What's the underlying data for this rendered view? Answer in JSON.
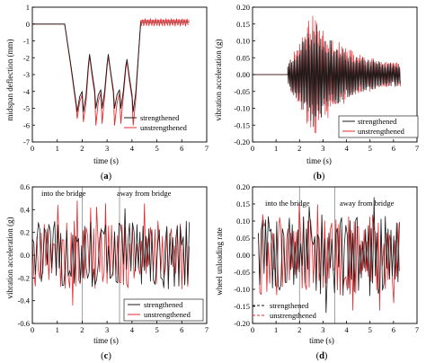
{
  "colors": {
    "strengthened": "#1a1a1a",
    "unstrengthened": "#e8292e",
    "vline": "#8a8a8a"
  },
  "panel_labels": [
    "(",
    "a",
    ")",
    "(",
    "b",
    ")",
    "(",
    "c",
    ")",
    "(",
    "d",
    ")"
  ],
  "chart_data": [
    {
      "id": "a",
      "type": "line",
      "xlabel": "time (s)",
      "ylabel": "midspan deflection (mm)",
      "xlim": [
        0,
        7
      ],
      "ylim": [
        -7,
        1
      ],
      "xticks": [
        0,
        1,
        2,
        3,
        4,
        5,
        6,
        7
      ],
      "yticks": [
        1,
        0,
        -1,
        -2,
        -3,
        -4,
        -5,
        -6,
        -7
      ],
      "legend": [
        "strengthened",
        "unstrengthened"
      ],
      "legend_position": "lower-right",
      "annotations": [],
      "series": [
        {
          "name": "strengthened",
          "x": [
            0,
            1.3,
            1.55,
            1.75,
            1.8,
            1.9,
            2.0,
            2.05,
            2.15,
            2.25,
            2.3,
            2.4,
            2.5,
            2.55,
            2.65,
            2.75,
            2.8,
            2.9,
            3.0,
            3.05,
            3.15,
            3.25,
            3.3,
            3.4,
            3.5,
            3.55,
            3.65,
            3.75,
            3.8,
            3.9,
            4.0,
            4.05,
            4.15,
            4.25,
            4.35,
            6.3
          ],
          "y": [
            0,
            0,
            -2.5,
            -4.6,
            -5.2,
            -4.3,
            -4.0,
            -5.2,
            -4.3,
            -2.4,
            -1.8,
            -2.9,
            -3.9,
            -5.0,
            -4.2,
            -3.9,
            -5.0,
            -4.0,
            -2.4,
            -1.8,
            -2.9,
            -3.9,
            -5.0,
            -4.2,
            -3.9,
            -5.0,
            -4.0,
            -2.5,
            -2.1,
            -3.2,
            -4.2,
            -5.2,
            -4.1,
            -2.0,
            0.1,
            0.1
          ]
        },
        {
          "name": "unstrengthened",
          "x": [
            0,
            1.3,
            1.55,
            1.75,
            1.8,
            1.9,
            2.0,
            2.05,
            2.15,
            2.25,
            2.3,
            2.4,
            2.5,
            2.55,
            2.65,
            2.75,
            2.8,
            2.9,
            3.0,
            3.05,
            3.15,
            3.25,
            3.3,
            3.4,
            3.5,
            3.55,
            3.65,
            3.75,
            3.8,
            3.9,
            4.0,
            4.05,
            4.15,
            4.25,
            4.35,
            6.3
          ],
          "y": [
            0,
            0,
            -2.6,
            -4.8,
            -5.6,
            -4.6,
            -4.2,
            -5.8,
            -4.7,
            -2.6,
            -1.9,
            -3.1,
            -4.1,
            -6.0,
            -4.6,
            -4.1,
            -5.9,
            -4.3,
            -2.6,
            -1.9,
            -3.0,
            -4.1,
            -6.0,
            -4.7,
            -4.1,
            -5.9,
            -4.3,
            -2.7,
            -2.2,
            -3.4,
            -4.4,
            -6.0,
            -4.5,
            -2.1,
            0.2,
            0.2
          ]
        }
      ]
    },
    {
      "id": "b",
      "type": "line",
      "xlabel": "time (s)",
      "ylabel": "vibration acceleration (g)",
      "xlim": [
        0,
        7
      ],
      "ylim": [
        -0.2,
        0.2
      ],
      "xticks": [
        0,
        1,
        2,
        3,
        4,
        5,
        6,
        7
      ],
      "yticks": [
        0.2,
        0.15,
        0.1,
        0.05,
        0.0,
        -0.05,
        -0.1,
        -0.15,
        -0.2
      ],
      "legend": [
        "strengthened",
        "unstrengthened"
      ],
      "legend_position": "lower-right",
      "annotations": [],
      "envelope": {
        "t_start": 1.5,
        "t_end": 6.3,
        "t_peak": 2.6,
        "amp_start": 0.035,
        "amp_peak_strengthened": 0.16,
        "amp_peak_unstrengthened": 0.19,
        "amp_end": 0.025
      }
    },
    {
      "id": "c",
      "type": "line",
      "xlabel": "time (s)",
      "ylabel": "vibration acceleration (g)",
      "xlim": [
        0,
        7
      ],
      "ylim": [
        -0.6,
        0.6
      ],
      "xticks": [
        0,
        1,
        2,
        3,
        4,
        5,
        6,
        7
      ],
      "yticks": [
        0.6,
        0.4,
        0.2,
        0.0,
        -0.2,
        -0.4,
        -0.6
      ],
      "legend": [
        "strengthened",
        "unstrengthened"
      ],
      "legend_position": "lower-right",
      "vlines": [
        2.0,
        3.5
      ],
      "annotations": [
        "into the bridge",
        "away from bridge"
      ],
      "signal": {
        "t_start": 0,
        "t_end": 6.3,
        "amp": 0.3,
        "peak": 0.5
      }
    },
    {
      "id": "d",
      "type": "line",
      "xlabel": "time (s)",
      "ylabel": "wheel unloading rate",
      "xlim": [
        0,
        7
      ],
      "ylim": [
        -0.2,
        0.2
      ],
      "xticks": [
        0,
        1,
        2,
        3,
        4,
        5,
        6,
        7
      ],
      "yticks": [
        0.2,
        0.15,
        0.1,
        0.05,
        0.0,
        -0.05,
        -0.1,
        -0.15,
        -0.2
      ],
      "legend": [
        "strengthened",
        "unstrengthened"
      ],
      "legend_position": "lower-left",
      "vlines": [
        2.0,
        3.5
      ],
      "annotations": [
        "into the bridge",
        "away from bridge"
      ],
      "signal": {
        "t_start": 0.25,
        "t_end": 6.3,
        "amp": 0.12,
        "peak": 0.17
      }
    }
  ]
}
